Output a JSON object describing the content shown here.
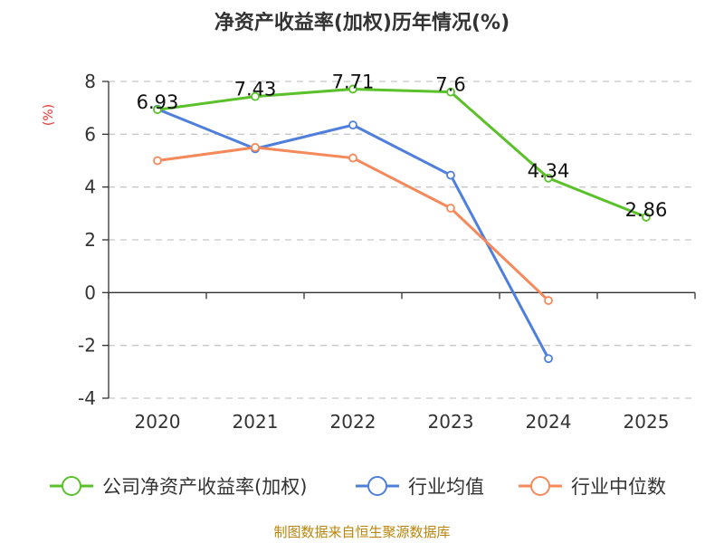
{
  "chart_data": {
    "type": "line",
    "title": "净资产收益率(加权)历年情况(%)",
    "ylabel": "(%)",
    "xlabel": "",
    "categories": [
      "2020",
      "2021",
      "2022",
      "2023",
      "2024",
      "2025"
    ],
    "ylim": [
      -4,
      8
    ],
    "yticks": [
      8,
      6,
      4,
      2,
      0,
      -2,
      -4
    ],
    "grid": true,
    "legend_position": "bottom",
    "series": [
      {
        "name": "公司净资产收益率(加权)",
        "color": "#5ac12a",
        "values": [
          6.93,
          7.43,
          7.71,
          7.6,
          4.34,
          2.86
        ],
        "labels": [
          "6.93",
          "7.43",
          "7.71",
          "7.6",
          "4.34",
          "2.86"
        ]
      },
      {
        "name": "行业均值",
        "color": "#4f7fdc",
        "values": [
          6.95,
          5.45,
          6.35,
          4.45,
          -2.5,
          null
        ]
      },
      {
        "name": "行业中位数",
        "color": "#f6895a",
        "values": [
          5.0,
          5.5,
          5.1,
          3.2,
          -0.3,
          null
        ]
      }
    ],
    "source": "制图数据来自恒生聚源数据库"
  }
}
